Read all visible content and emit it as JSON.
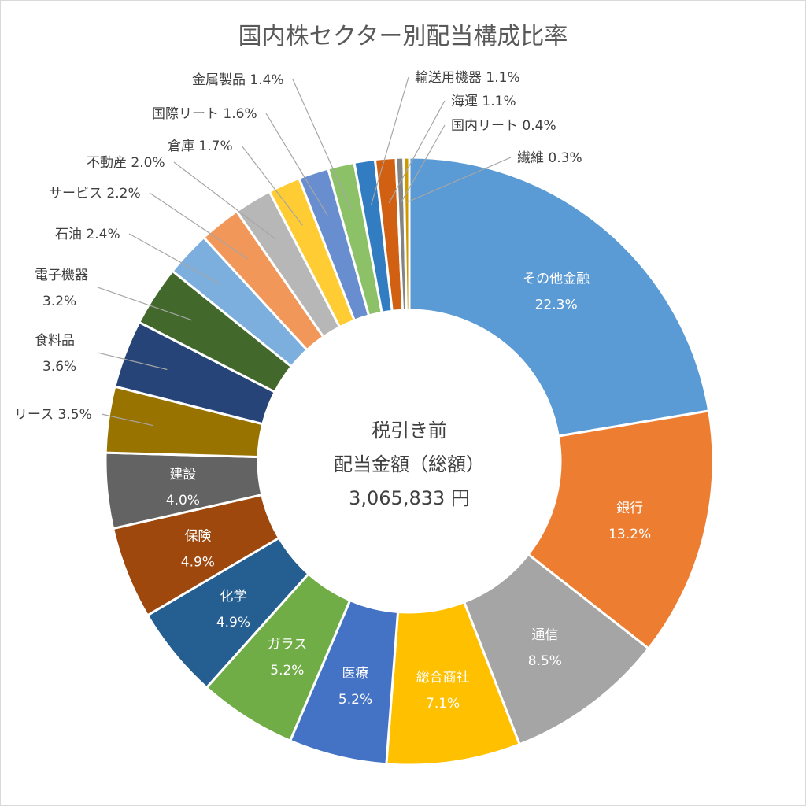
{
  "chart_data": {
    "type": "pie",
    "title": "国内株セクター別配当構成比率",
    "center_label": [
      "税引き前",
      "配当金額（総額）",
      "3,065,833 円"
    ],
    "legend": "none",
    "slices": [
      {
        "name": "その他金融",
        "value": 22.3,
        "label": "22.3%",
        "color": "#5B9BD5"
      },
      {
        "name": "銀行",
        "value": 13.2,
        "label": "13.2%",
        "color": "#ED7D31"
      },
      {
        "name": "通信",
        "value": 8.5,
        "label": "8.5%",
        "color": "#A5A5A5"
      },
      {
        "name": "総合商社",
        "value": 7.1,
        "label": "7.1%",
        "color": "#FFC000"
      },
      {
        "name": "医療",
        "value": 5.2,
        "label": "5.2%",
        "color": "#4472C4"
      },
      {
        "name": "ガラス",
        "value": 5.2,
        "label": "5.2%",
        "color": "#70AD47"
      },
      {
        "name": "化学",
        "value": 4.9,
        "label": "4.9%",
        "color": "#255E91"
      },
      {
        "name": "保険",
        "value": 4.9,
        "label": "4.9%",
        "color": "#9E480E"
      },
      {
        "name": "建設",
        "value": 4.0,
        "label": "4.0%",
        "color": "#636363"
      },
      {
        "name": "リース",
        "value": 3.5,
        "label": "3.5%",
        "color": "#997300"
      },
      {
        "name": "食料品",
        "value": 3.6,
        "label": "3.6%",
        "color": "#264478"
      },
      {
        "name": "電子機器",
        "value": 3.2,
        "label": "3.2%",
        "color": "#43682B"
      },
      {
        "name": "石油",
        "value": 2.4,
        "label": "2.4%",
        "color": "#7CAFDD"
      },
      {
        "name": "サービス",
        "value": 2.2,
        "label": "2.2%",
        "color": "#F1975A"
      },
      {
        "name": "不動産",
        "value": 2.0,
        "label": "2.0%",
        "color": "#B7B7B7"
      },
      {
        "name": "倉庫",
        "value": 1.7,
        "label": "1.7%",
        "color": "#FFCD33"
      },
      {
        "name": "国際リート",
        "value": 1.6,
        "label": "1.6%",
        "color": "#698ED0"
      },
      {
        "name": "金属製品",
        "value": 1.4,
        "label": "1.4%",
        "color": "#8CC168"
      },
      {
        "name": "輸送用機器",
        "value": 1.1,
        "label": "1.1%",
        "color": "#327DC2"
      },
      {
        "name": "海運",
        "value": 1.1,
        "label": "1.1%",
        "color": "#D26012"
      },
      {
        "name": "国内リート",
        "value": 0.4,
        "label": "0.4%",
        "color": "#848484"
      },
      {
        "name": "繊維",
        "value": 0.3,
        "label": "0.3%",
        "color": "#CC9A00"
      }
    ]
  }
}
